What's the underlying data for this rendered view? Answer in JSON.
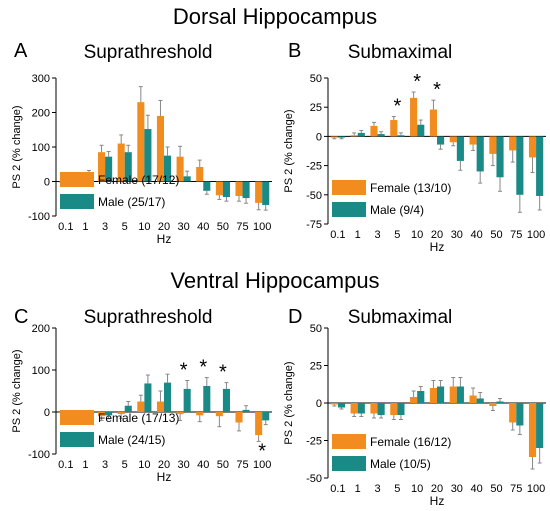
{
  "sections": {
    "dorsal_title": "Dorsal Hippocampus",
    "ventral_title": "Ventral Hippocampus"
  },
  "colors": {
    "female": "#f28c1e",
    "male": "#1a8a86"
  },
  "chart_data": [
    {
      "panel": "A",
      "type": "bar",
      "title": "Suprathreshold",
      "xlabel": "Hz",
      "ylabel": "PS 2 (% change)",
      "ylim": [
        -100,
        300
      ],
      "yticks": [
        -100,
        0,
        100,
        200,
        300
      ],
      "categories": [
        "0.1",
        "1",
        "3",
        "5",
        "10",
        "20",
        "30",
        "40",
        "50",
        "75",
        "100"
      ],
      "legend_position": "bottom-left",
      "significance": [],
      "series": [
        {
          "name": "Female (17/12)",
          "values": [
            -3,
            8,
            85,
            110,
            230,
            190,
            72,
            42,
            -40,
            -42,
            -62
          ],
          "errors": [
            5,
            8,
            20,
            25,
            45,
            45,
            30,
            20,
            12,
            15,
            20
          ]
        },
        {
          "name": "Male (25/17)",
          "values": [
            2,
            22,
            72,
            85,
            152,
            75,
            15,
            -27,
            -45,
            -48,
            -68
          ],
          "errors": [
            5,
            10,
            15,
            20,
            40,
            25,
            15,
            10,
            12,
            15,
            15
          ]
        }
      ]
    },
    {
      "panel": "B",
      "type": "bar",
      "title": "Submaximal",
      "xlabel": "Hz",
      "ylabel": "PS 2 (% change)",
      "ylim": [
        -75,
        50
      ],
      "yticks": [
        -75,
        -50,
        -25,
        0,
        25,
        50
      ],
      "categories": [
        "0.1",
        "1",
        "3",
        "5",
        "10",
        "20",
        "30",
        "40",
        "50",
        "75",
        "100"
      ],
      "legend_position": "bottom-left",
      "significance": [
        "5",
        "10",
        "20"
      ],
      "series": [
        {
          "name": "Female (13/10)",
          "values": [
            -1,
            1,
            9,
            14,
            33,
            23,
            -5,
            -7,
            -15,
            -12,
            -18
          ],
          "errors": [
            1,
            2,
            3,
            3,
            5,
            8,
            3,
            5,
            10,
            10,
            13
          ]
        },
        {
          "name": "Male (9/4)",
          "values": [
            -1,
            3,
            2,
            1,
            10,
            -7,
            -21,
            -30,
            -35,
            -50,
            -51
          ],
          "errors": [
            1,
            2,
            2,
            2,
            4,
            4,
            8,
            10,
            12,
            15,
            12
          ]
        }
      ]
    },
    {
      "panel": "C",
      "type": "bar",
      "title": "Suprathreshold",
      "xlabel": "Hz",
      "ylabel": "PS 2 (% change)",
      "ylim": [
        -100,
        200
      ],
      "yticks": [
        -100,
        0,
        100,
        200
      ],
      "categories": [
        "0.1",
        "1",
        "3",
        "5",
        "10",
        "20",
        "30",
        "40",
        "50",
        "75",
        "100"
      ],
      "legend_position": "bottom-left",
      "significance": [
        "30",
        "40",
        "50",
        "100"
      ],
      "series": [
        {
          "name": "Female (17/13)",
          "values": [
            -3,
            -15,
            -10,
            -5,
            25,
            25,
            -5,
            -8,
            -10,
            -25,
            -55
          ],
          "errors": [
            3,
            8,
            10,
            10,
            15,
            25,
            15,
            15,
            25,
            20,
            15
          ]
        },
        {
          "name": "Male (24/15)",
          "values": [
            -5,
            -10,
            -8,
            15,
            68,
            70,
            55,
            62,
            55,
            5,
            -20
          ],
          "errors": [
            3,
            5,
            8,
            10,
            20,
            20,
            20,
            20,
            15,
            10,
            10
          ]
        }
      ]
    },
    {
      "panel": "D",
      "type": "bar",
      "title": "Submaximal",
      "xlabel": "Hz",
      "ylabel": "PS 2 (% change)",
      "ylim": [
        -50,
        50
      ],
      "yticks": [
        -50,
        -25,
        0,
        25,
        50
      ],
      "categories": [
        "0.1",
        "1",
        "3",
        "5",
        "10",
        "20",
        "30",
        "40",
        "50",
        "75",
        "100"
      ],
      "legend_position": "bottom-left",
      "significance": [],
      "series": [
        {
          "name": "Female (16/12)",
          "values": [
            -1,
            -7,
            -7,
            -8,
            4,
            10,
            11,
            5,
            -2,
            -13,
            -36
          ],
          "errors": [
            1,
            2,
            3,
            3,
            4,
            5,
            6,
            5,
            3,
            5,
            8
          ]
        },
        {
          "name": "Male (10/5)",
          "values": [
            -3,
            -7,
            -8,
            -8,
            8,
            11,
            11,
            3,
            1,
            -15,
            -30
          ],
          "errors": [
            1,
            2,
            2,
            3,
            3,
            4,
            6,
            4,
            2,
            6,
            10
          ]
        }
      ]
    }
  ]
}
